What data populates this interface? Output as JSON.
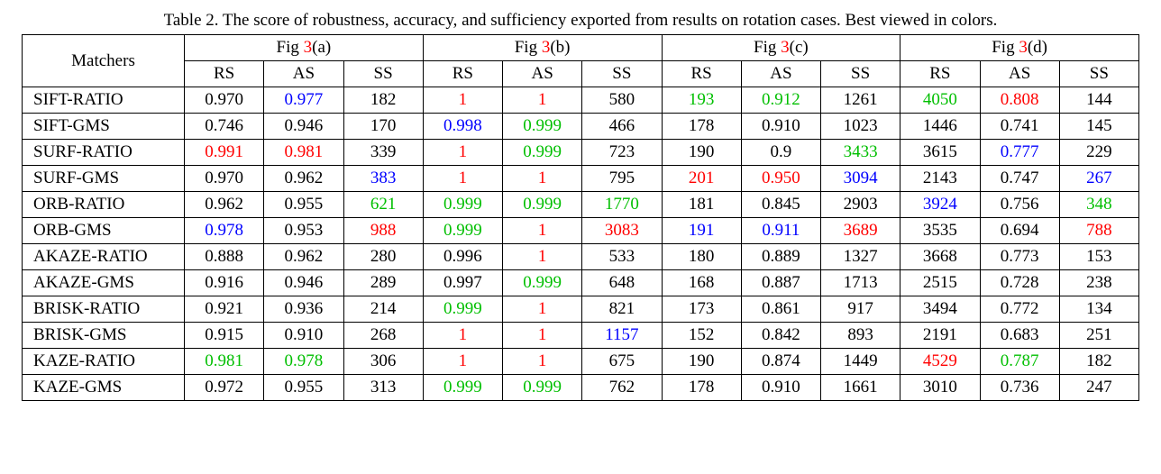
{
  "caption": {
    "prefix": "Table 2. The score of robustness, accuracy, and sufficiency exported from results on rotation cases. Best viewed in colors."
  },
  "colors": {
    "default": "#000000",
    "red": "#ff0000",
    "green": "#00bf00",
    "blue": "#0000ff"
  },
  "headers": {
    "matchers": "Matchers",
    "groups": [
      {
        "prefix": "Fig ",
        "num": "3",
        "suffix": "(a)"
      },
      {
        "prefix": "Fig ",
        "num": "3",
        "suffix": "(b)"
      },
      {
        "prefix": "Fig ",
        "num": "3",
        "suffix": "(c)"
      },
      {
        "prefix": "Fig ",
        "num": "3",
        "suffix": "(d)"
      }
    ],
    "sub": [
      "RS",
      "AS",
      "SS"
    ]
  },
  "rows": [
    {
      "name": "SIFT-RATIO",
      "cells": [
        {
          "v": "0.970",
          "c": "default"
        },
        {
          "v": "0.977",
          "c": "blue"
        },
        {
          "v": "182",
          "c": "default"
        },
        {
          "v": "1",
          "c": "red"
        },
        {
          "v": "1",
          "c": "red"
        },
        {
          "v": "580",
          "c": "default"
        },
        {
          "v": "193",
          "c": "green"
        },
        {
          "v": "0.912",
          "c": "green"
        },
        {
          "v": "1261",
          "c": "default"
        },
        {
          "v": "4050",
          "c": "green"
        },
        {
          "v": "0.808",
          "c": "red"
        },
        {
          "v": "144",
          "c": "default"
        }
      ]
    },
    {
      "name": "SIFT-GMS",
      "cells": [
        {
          "v": "0.746",
          "c": "default"
        },
        {
          "v": "0.946",
          "c": "default"
        },
        {
          "v": "170",
          "c": "default"
        },
        {
          "v": "0.998",
          "c": "blue"
        },
        {
          "v": "0.999",
          "c": "green"
        },
        {
          "v": "466",
          "c": "default"
        },
        {
          "v": "178",
          "c": "default"
        },
        {
          "v": "0.910",
          "c": "default"
        },
        {
          "v": "1023",
          "c": "default"
        },
        {
          "v": "1446",
          "c": "default"
        },
        {
          "v": "0.741",
          "c": "default"
        },
        {
          "v": "145",
          "c": "default"
        }
      ]
    },
    {
      "name": "SURF-RATIO",
      "cells": [
        {
          "v": "0.991",
          "c": "red"
        },
        {
          "v": "0.981",
          "c": "red"
        },
        {
          "v": "339",
          "c": "default"
        },
        {
          "v": "1",
          "c": "red"
        },
        {
          "v": "0.999",
          "c": "green"
        },
        {
          "v": "723",
          "c": "default"
        },
        {
          "v": "190",
          "c": "default"
        },
        {
          "v": "0.9",
          "c": "default"
        },
        {
          "v": "3433",
          "c": "green"
        },
        {
          "v": "3615",
          "c": "default"
        },
        {
          "v": "0.777",
          "c": "blue"
        },
        {
          "v": "229",
          "c": "default"
        }
      ]
    },
    {
      "name": "SURF-GMS",
      "cells": [
        {
          "v": "0.970",
          "c": "default"
        },
        {
          "v": "0.962",
          "c": "default"
        },
        {
          "v": "383",
          "c": "blue"
        },
        {
          "v": "1",
          "c": "red"
        },
        {
          "v": "1",
          "c": "red"
        },
        {
          "v": "795",
          "c": "default"
        },
        {
          "v": "201",
          "c": "red"
        },
        {
          "v": "0.950",
          "c": "red"
        },
        {
          "v": "3094",
          "c": "blue"
        },
        {
          "v": "2143",
          "c": "default"
        },
        {
          "v": "0.747",
          "c": "default"
        },
        {
          "v": "267",
          "c": "blue"
        }
      ]
    },
    {
      "name": "ORB-RATIO",
      "cells": [
        {
          "v": "0.962",
          "c": "default"
        },
        {
          "v": "0.955",
          "c": "default"
        },
        {
          "v": "621",
          "c": "green"
        },
        {
          "v": "0.999",
          "c": "green"
        },
        {
          "v": "0.999",
          "c": "green"
        },
        {
          "v": "1770",
          "c": "green"
        },
        {
          "v": "181",
          "c": "default"
        },
        {
          "v": "0.845",
          "c": "default"
        },
        {
          "v": "2903",
          "c": "default"
        },
        {
          "v": "3924",
          "c": "blue"
        },
        {
          "v": "0.756",
          "c": "default"
        },
        {
          "v": "348",
          "c": "green"
        }
      ]
    },
    {
      "name": "ORB-GMS",
      "cells": [
        {
          "v": "0.978",
          "c": "blue"
        },
        {
          "v": "0.953",
          "c": "default"
        },
        {
          "v": "988",
          "c": "red"
        },
        {
          "v": "0.999",
          "c": "green"
        },
        {
          "v": "1",
          "c": "red"
        },
        {
          "v": "3083",
          "c": "red"
        },
        {
          "v": "191",
          "c": "blue"
        },
        {
          "v": "0.911",
          "c": "blue"
        },
        {
          "v": "3689",
          "c": "red"
        },
        {
          "v": "3535",
          "c": "default"
        },
        {
          "v": "0.694",
          "c": "default"
        },
        {
          "v": "788",
          "c": "red"
        }
      ]
    },
    {
      "name": "AKAZE-RATIO",
      "cells": [
        {
          "v": "0.888",
          "c": "default"
        },
        {
          "v": "0.962",
          "c": "default"
        },
        {
          "v": "280",
          "c": "default"
        },
        {
          "v": "0.996",
          "c": "default"
        },
        {
          "v": "1",
          "c": "red"
        },
        {
          "v": "533",
          "c": "default"
        },
        {
          "v": "180",
          "c": "default"
        },
        {
          "v": "0.889",
          "c": "default"
        },
        {
          "v": "1327",
          "c": "default"
        },
        {
          "v": "3668",
          "c": "default"
        },
        {
          "v": "0.773",
          "c": "default"
        },
        {
          "v": "153",
          "c": "default"
        }
      ]
    },
    {
      "name": "AKAZE-GMS",
      "cells": [
        {
          "v": "0.916",
          "c": "default"
        },
        {
          "v": "0.946",
          "c": "default"
        },
        {
          "v": "289",
          "c": "default"
        },
        {
          "v": "0.997",
          "c": "default"
        },
        {
          "v": "0.999",
          "c": "green"
        },
        {
          "v": "648",
          "c": "default"
        },
        {
          "v": "168",
          "c": "default"
        },
        {
          "v": "0.887",
          "c": "default"
        },
        {
          "v": "1713",
          "c": "default"
        },
        {
          "v": "2515",
          "c": "default"
        },
        {
          "v": "0.728",
          "c": "default"
        },
        {
          "v": "238",
          "c": "default"
        }
      ]
    },
    {
      "name": "BRISK-RATIO",
      "cells": [
        {
          "v": "0.921",
          "c": "default"
        },
        {
          "v": "0.936",
          "c": "default"
        },
        {
          "v": "214",
          "c": "default"
        },
        {
          "v": "0.999",
          "c": "green"
        },
        {
          "v": "1",
          "c": "red"
        },
        {
          "v": "821",
          "c": "default"
        },
        {
          "v": "173",
          "c": "default"
        },
        {
          "v": "0.861",
          "c": "default"
        },
        {
          "v": "917",
          "c": "default"
        },
        {
          "v": "3494",
          "c": "default"
        },
        {
          "v": "0.772",
          "c": "default"
        },
        {
          "v": "134",
          "c": "default"
        }
      ]
    },
    {
      "name": "BRISK-GMS",
      "cells": [
        {
          "v": "0.915",
          "c": "default"
        },
        {
          "v": "0.910",
          "c": "default"
        },
        {
          "v": "268",
          "c": "default"
        },
        {
          "v": "1",
          "c": "red"
        },
        {
          "v": "1",
          "c": "red"
        },
        {
          "v": "1157",
          "c": "blue"
        },
        {
          "v": "152",
          "c": "default"
        },
        {
          "v": "0.842",
          "c": "default"
        },
        {
          "v": "893",
          "c": "default"
        },
        {
          "v": "2191",
          "c": "default"
        },
        {
          "v": "0.683",
          "c": "default"
        },
        {
          "v": "251",
          "c": "default"
        }
      ]
    },
    {
      "name": "KAZE-RATIO",
      "cells": [
        {
          "v": "0.981",
          "c": "green"
        },
        {
          "v": "0.978",
          "c": "green"
        },
        {
          "v": "306",
          "c": "default"
        },
        {
          "v": "1",
          "c": "red"
        },
        {
          "v": "1",
          "c": "red"
        },
        {
          "v": "675",
          "c": "default"
        },
        {
          "v": "190",
          "c": "default"
        },
        {
          "v": "0.874",
          "c": "default"
        },
        {
          "v": "1449",
          "c": "default"
        },
        {
          "v": "4529",
          "c": "red"
        },
        {
          "v": "0.787",
          "c": "green"
        },
        {
          "v": "182",
          "c": "default"
        }
      ]
    },
    {
      "name": "KAZE-GMS",
      "cells": [
        {
          "v": "0.972",
          "c": "default"
        },
        {
          "v": "0.955",
          "c": "default"
        },
        {
          "v": "313",
          "c": "default"
        },
        {
          "v": "0.999",
          "c": "green"
        },
        {
          "v": "0.999",
          "c": "green"
        },
        {
          "v": "762",
          "c": "default"
        },
        {
          "v": "178",
          "c": "default"
        },
        {
          "v": "0.910",
          "c": "default"
        },
        {
          "v": "1661",
          "c": "default"
        },
        {
          "v": "3010",
          "c": "default"
        },
        {
          "v": "0.736",
          "c": "default"
        },
        {
          "v": "247",
          "c": "default"
        }
      ]
    }
  ]
}
